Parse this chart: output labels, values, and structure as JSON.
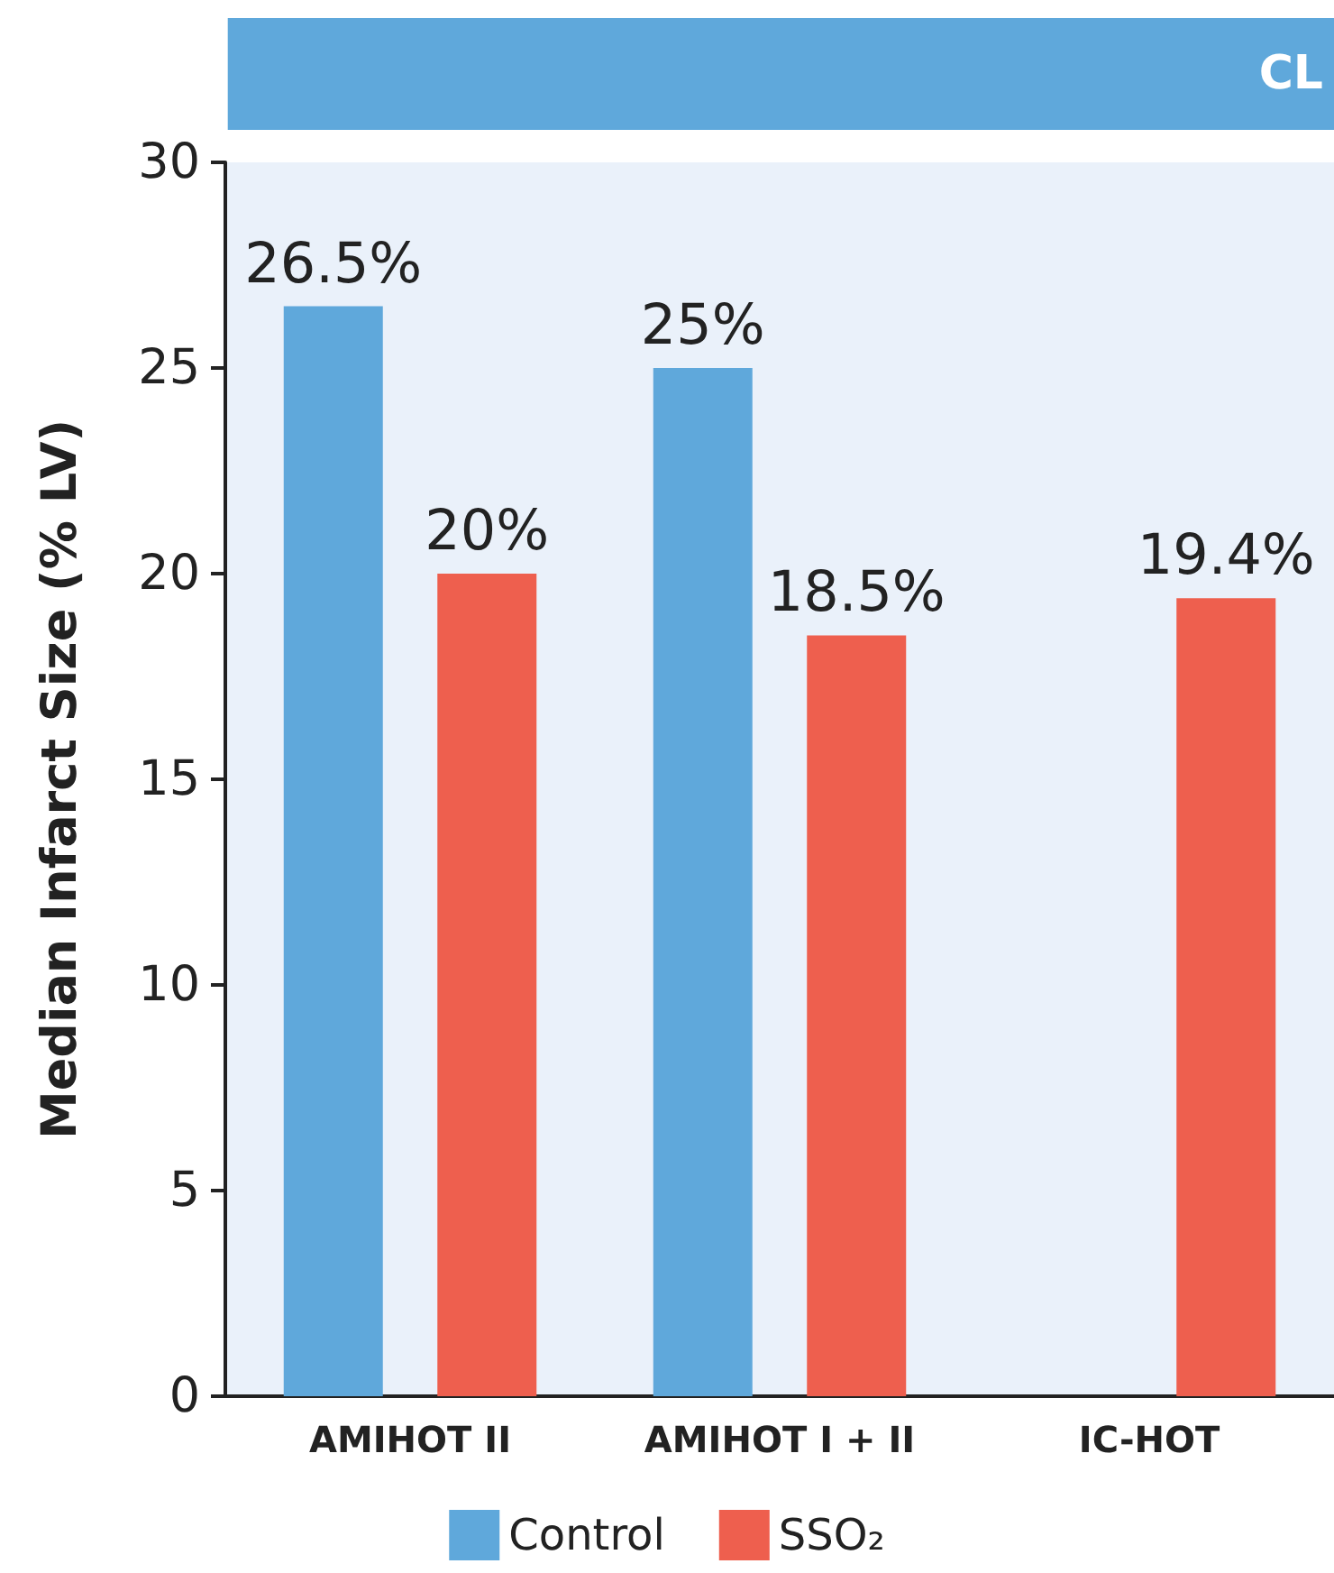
{
  "chart_data": {
    "type": "bar",
    "title": "CL",
    "ylabel": "Median Infarct Size (% LV)",
    "categories": [
      "AMIHOT II",
      "AMIHOT I + II",
      "IC-HOT"
    ],
    "series": [
      {
        "name": "Control",
        "color": "#5fa8db",
        "values": [
          26.5,
          25,
          null
        ],
        "value_labels": [
          "26.5%",
          "25%",
          null
        ]
      },
      {
        "name": "SSO₂",
        "color": "#ee5f4e",
        "values": [
          20,
          18.5,
          19.4
        ],
        "value_labels": [
          "20%",
          "18.5%",
          "19.4%"
        ]
      }
    ],
    "ylim": [
      0,
      30
    ],
    "yticks": [
      0,
      5,
      10,
      15,
      20,
      25,
      30
    ],
    "grid": false,
    "legend": "bottom"
  }
}
